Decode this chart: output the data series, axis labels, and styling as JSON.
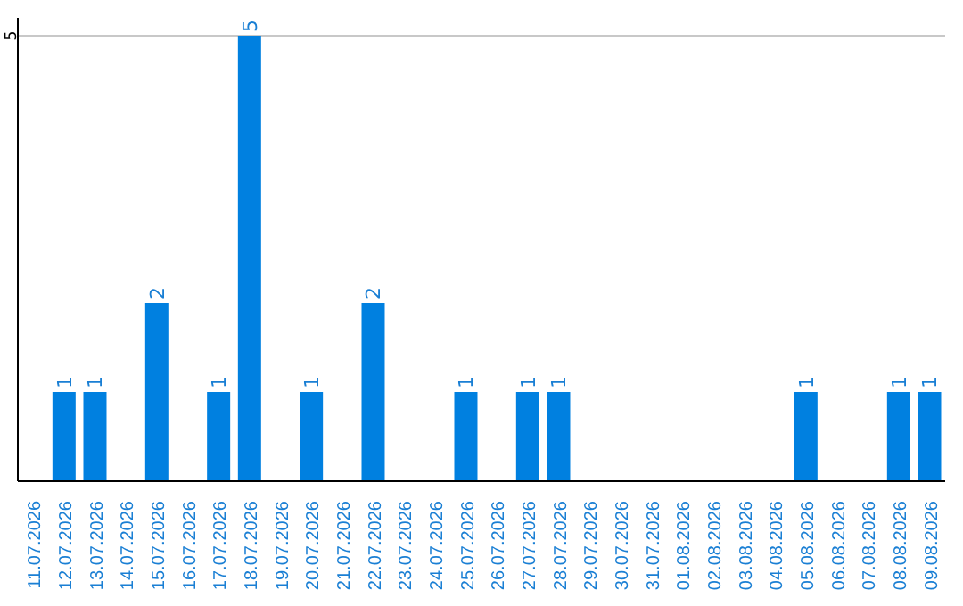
{
  "chart_data": {
    "type": "bar",
    "categories": [
      "11.07.2026",
      "12.07.2026",
      "13.07.2026",
      "14.07.2026",
      "15.07.2026",
      "16.07.2026",
      "17.07.2026",
      "18.07.2026",
      "19.07.2026",
      "20.07.2026",
      "21.07.2026",
      "22.07.2026",
      "23.07.2026",
      "24.07.2026",
      "25.07.2026",
      "26.07.2026",
      "27.07.2026",
      "28.07.2026",
      "29.07.2026",
      "30.07.2026",
      "31.07.2026",
      "01.08.2026",
      "02.08.2026",
      "03.08.2026",
      "04.08.2026",
      "05.08.2026",
      "06.08.2026",
      "07.08.2026",
      "08.08.2026",
      "09.08.2026"
    ],
    "values": [
      0,
      1,
      1,
      0,
      2,
      0,
      1,
      5,
      0,
      1,
      0,
      2,
      0,
      0,
      1,
      0,
      1,
      1,
      0,
      0,
      0,
      0,
      0,
      0,
      0,
      1,
      0,
      0,
      1,
      1
    ],
    "value_labels": [
      null,
      "1",
      "1",
      null,
      "2",
      null,
      "1",
      "5",
      null,
      "1",
      null,
      "2",
      null,
      null,
      "1",
      null,
      "1",
      "1",
      null,
      null,
      null,
      null,
      null,
      null,
      null,
      "1",
      null,
      null,
      "1",
      "1"
    ],
    "color": "#0080e0",
    "ylim": [
      0,
      5.2
    ],
    "yticks": [
      5
    ],
    "grid": "y"
  }
}
